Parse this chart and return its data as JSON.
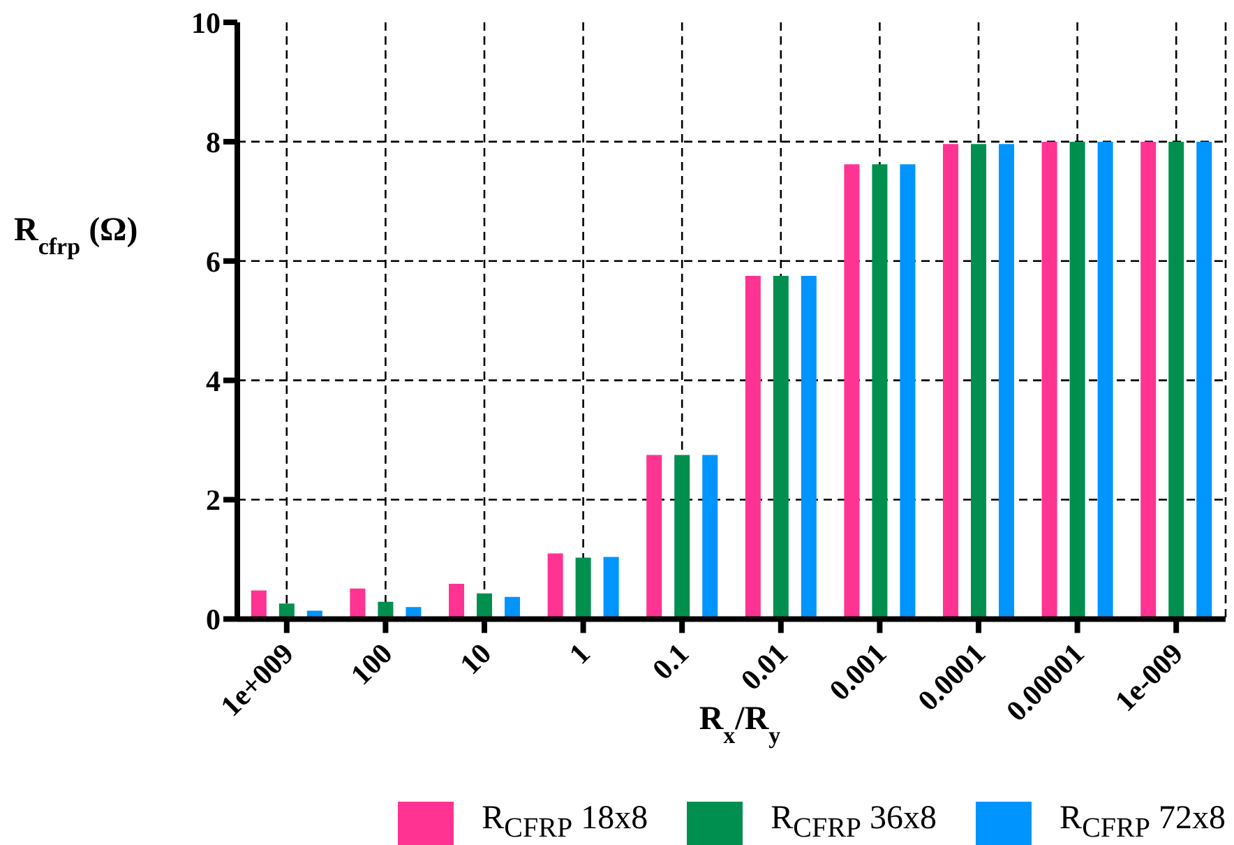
{
  "chart_data": {
    "type": "bar",
    "xlabel": "R$_{x}$/R$_{y}$",
    "ylabel": "R$_{cfrp}$ (Ω)",
    "categories": [
      "1e+009",
      "100",
      "10",
      "1",
      "0.1",
      "0.01",
      "0.001",
      "0.0001",
      "0.00001",
      "1e-009"
    ],
    "series": [
      {
        "name": "R$_{CFRP}$ 18x8",
        "color": "#ff3392",
        "values": [
          0.48,
          0.51,
          0.59,
          1.1,
          2.75,
          5.75,
          7.62,
          7.96,
          8.0,
          8.0
        ]
      },
      {
        "name": "R$_{CFRP}$ 36x8",
        "color": "#008f4f",
        "values": [
          0.26,
          0.29,
          0.43,
          1.03,
          2.75,
          5.75,
          7.62,
          7.96,
          8.0,
          8.0
        ]
      },
      {
        "name": "R$_{CFRP}$ 72x8",
        "color": "#0094ff",
        "values": [
          0.14,
          0.2,
          0.37,
          1.04,
          2.75,
          5.75,
          7.62,
          7.96,
          8.0,
          8.0
        ]
      }
    ],
    "ylim": [
      0,
      10
    ],
    "yticks": [
      0,
      2,
      4,
      6,
      8,
      10
    ],
    "grid": true,
    "line_style": "dashed",
    "legend": "bottom"
  }
}
